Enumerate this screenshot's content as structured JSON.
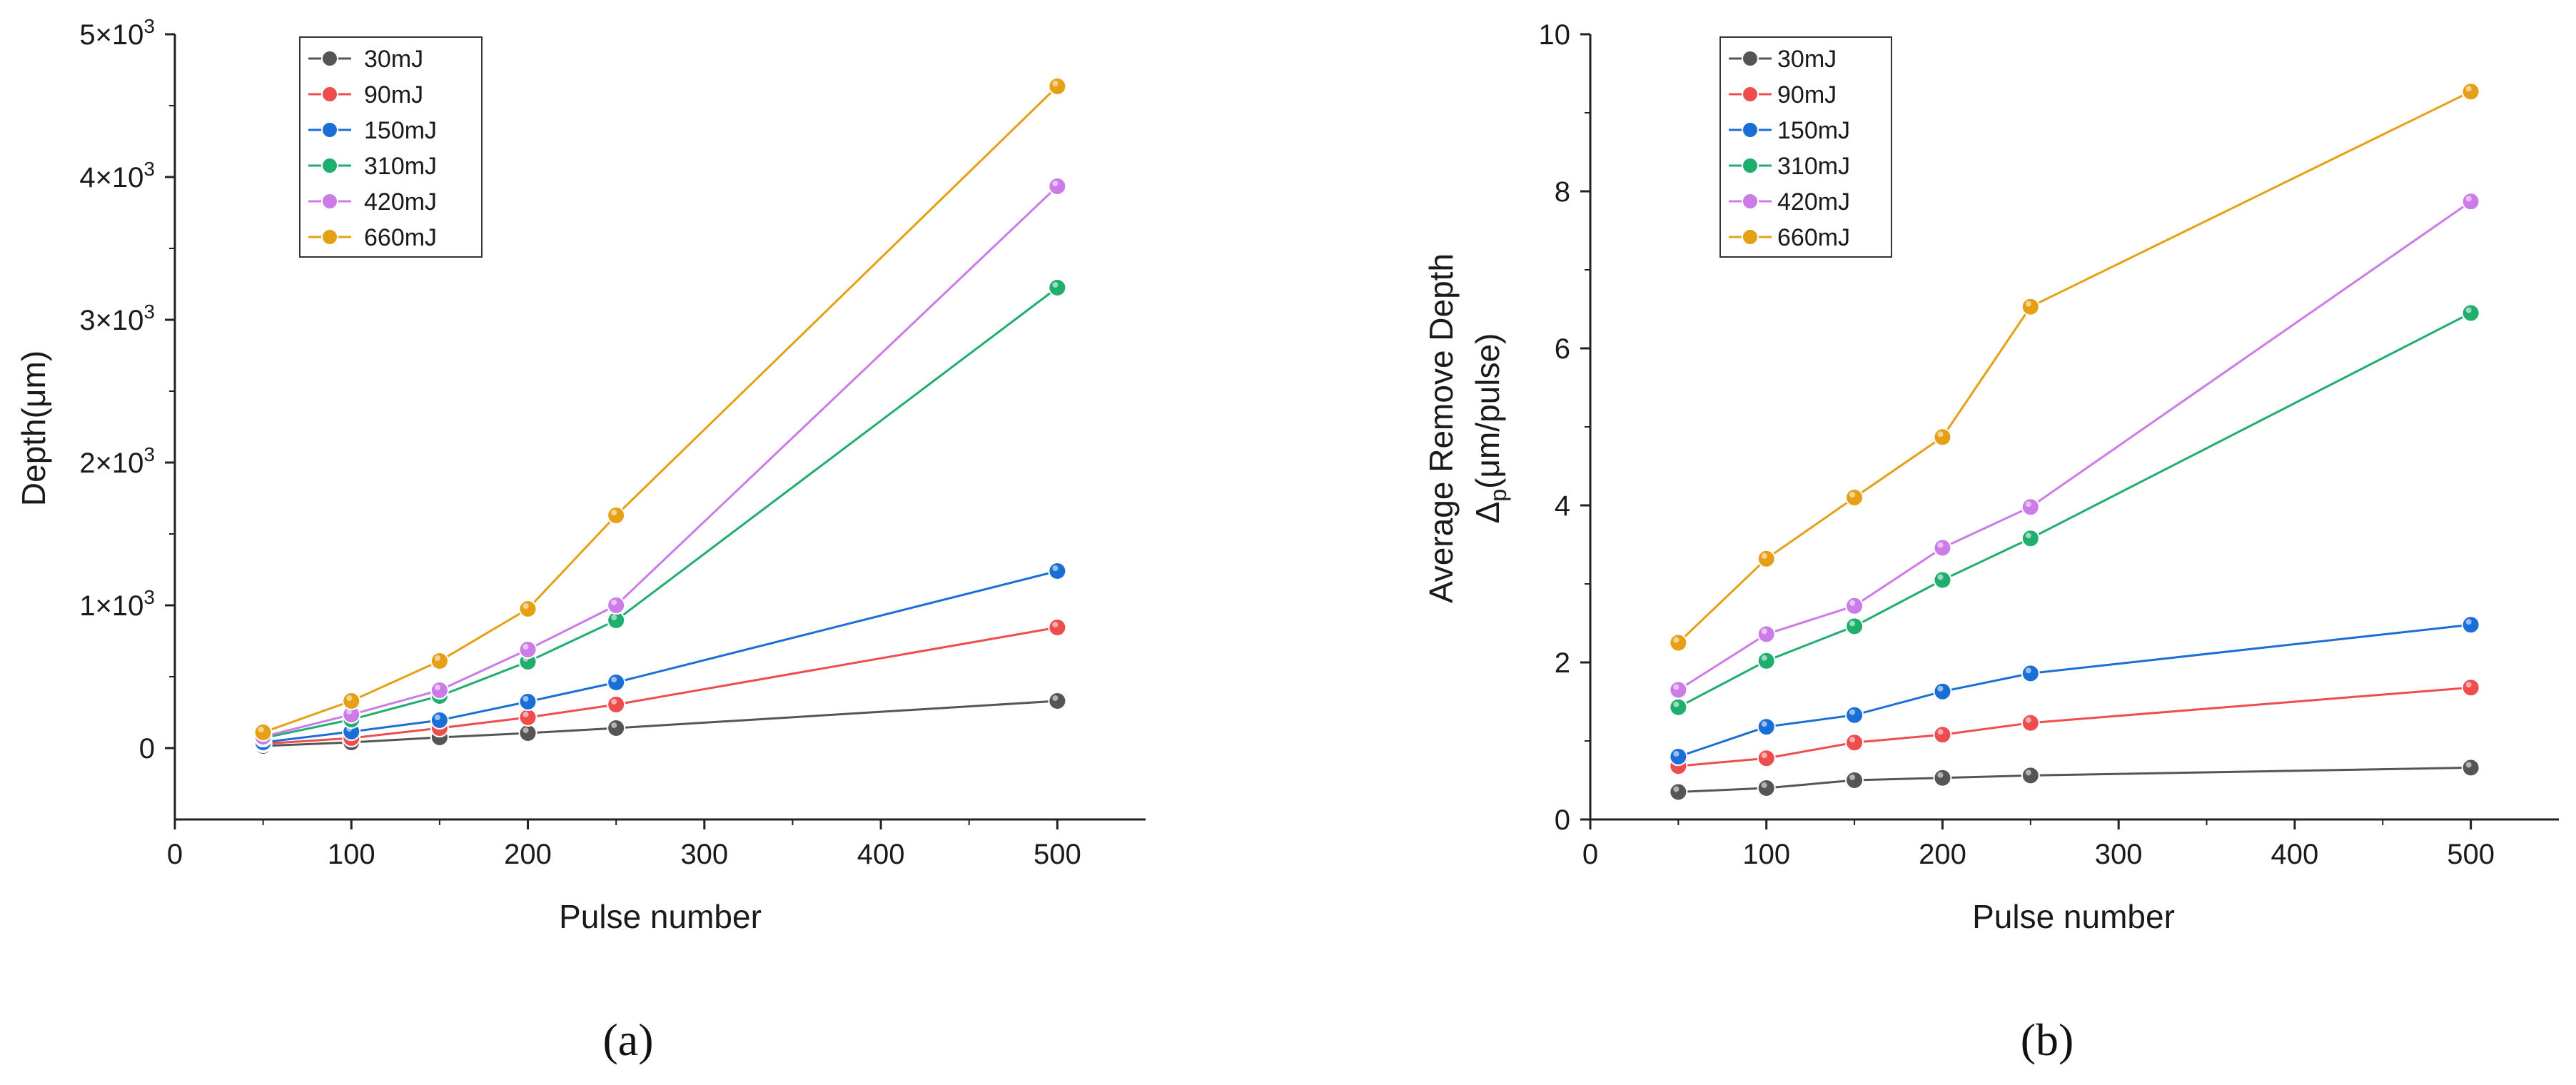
{
  "chart_data": [
    {
      "type": "line",
      "panel": "(a)",
      "xlabel": "Pulse number",
      "ylabel": "Depth(μm)",
      "xlim": [
        0,
        550
      ],
      "ylim": [
        -500,
        5000
      ],
      "x_ticks": [
        0,
        100,
        200,
        300,
        400,
        500
      ],
      "y_ticks": [
        {
          "value": 0,
          "mant": "0",
          "exp": ""
        },
        {
          "value": 1000,
          "mant": "1×10",
          "exp": "3"
        },
        {
          "value": 2000,
          "mant": "2×10",
          "exp": "3"
        },
        {
          "value": 3000,
          "mant": "3×10",
          "exp": "3"
        },
        {
          "value": 4000,
          "mant": "4×10",
          "exp": "3"
        },
        {
          "value": 5000,
          "mant": "5×10",
          "exp": "3"
        }
      ],
      "x": [
        50,
        100,
        150,
        200,
        250,
        500
      ],
      "series": [
        {
          "name": "30mJ",
          "color": "#555555",
          "values": [
            15,
            40,
            75,
            105,
            140,
            330
          ]
        },
        {
          "name": "90mJ",
          "color": "#ef4d4d",
          "values": [
            30,
            70,
            140,
            215,
            305,
            845
          ]
        },
        {
          "name": "150mJ",
          "color": "#1a6fd6",
          "values": [
            40,
            115,
            195,
            325,
            460,
            1240
          ]
        },
        {
          "name": "310mJ",
          "color": "#1fae6e",
          "values": [
            70,
            200,
            365,
            605,
            895,
            3225
          ]
        },
        {
          "name": "420mJ",
          "color": "#cc7be8",
          "values": [
            80,
            235,
            405,
            690,
            1000,
            3935
          ]
        },
        {
          "name": "660mJ",
          "color": "#e5a015",
          "values": [
            110,
            330,
            610,
            975,
            1630,
            4635
          ]
        }
      ]
    },
    {
      "type": "line",
      "panel": "(b)",
      "xlabel": "Pulse number",
      "ylabel_line1": "Average Remove Depth",
      "ylabel_line2": "Δ",
      "ylabel_sub": "p",
      "ylabel_unit": "(μm/pulse)",
      "xlim": [
        0,
        550
      ],
      "ylim": [
        0,
        10
      ],
      "x_ticks": [
        0,
        100,
        200,
        300,
        400,
        500
      ],
      "y_ticks": [
        0,
        2,
        4,
        6,
        8,
        10
      ],
      "x": [
        50,
        100,
        150,
        200,
        250,
        500
      ],
      "series": [
        {
          "name": "30mJ",
          "color": "#555555",
          "values": [
            0.35,
            0.4,
            0.5,
            0.53,
            0.56,
            0.66
          ]
        },
        {
          "name": "90mJ",
          "color": "#ef4d4d",
          "values": [
            0.68,
            0.78,
            0.98,
            1.08,
            1.23,
            1.68
          ]
        },
        {
          "name": "150mJ",
          "color": "#1a6fd6",
          "values": [
            0.8,
            1.18,
            1.33,
            1.63,
            1.86,
            2.48
          ]
        },
        {
          "name": "310mJ",
          "color": "#1fae6e",
          "values": [
            1.43,
            2.02,
            2.46,
            3.05,
            3.58,
            6.45
          ]
        },
        {
          "name": "420mJ",
          "color": "#cc7be8",
          "values": [
            1.65,
            2.36,
            2.72,
            3.46,
            3.98,
            7.87
          ]
        },
        {
          "name": "660mJ",
          "color": "#e5a015",
          "values": [
            2.25,
            3.32,
            4.1,
            4.87,
            6.53,
            9.27
          ]
        }
      ]
    }
  ]
}
